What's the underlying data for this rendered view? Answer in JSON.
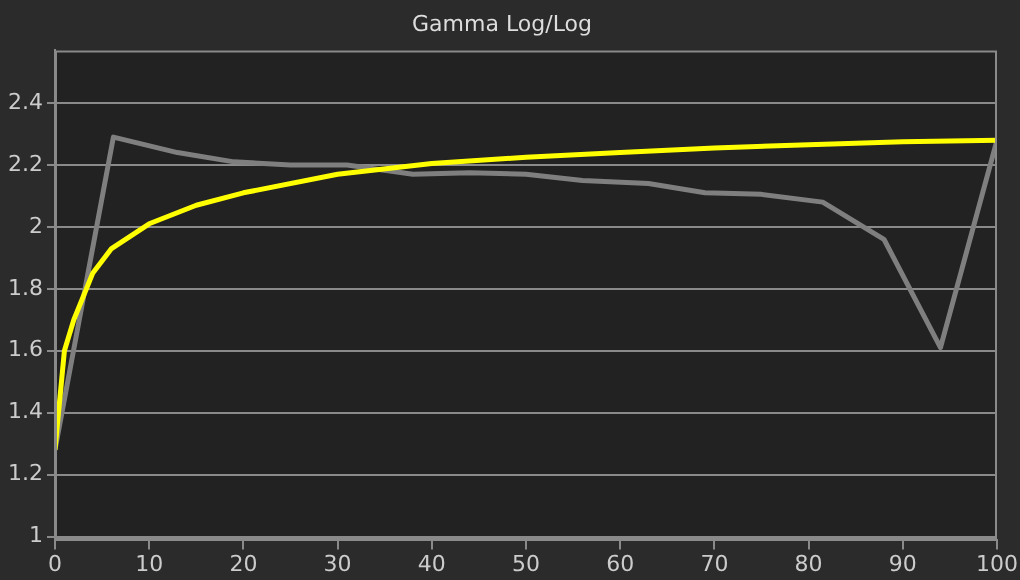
{
  "chart_data": {
    "type": "line",
    "title": "Gamma Log/Log",
    "xlim": [
      0,
      100
    ],
    "xticks": [
      0,
      10,
      20,
      30,
      40,
      50,
      60,
      70,
      80,
      90,
      100
    ],
    "ylim": [
      0.99,
      2.57
    ],
    "yticks": [
      1,
      1.2,
      1.4,
      1.6,
      1.8,
      2,
      2.2,
      2.4
    ],
    "grid": "y",
    "marker": "none",
    "legend": false,
    "series": [
      {
        "color": "#7f7f7f",
        "x": [
          0,
          6.2,
          13,
          19,
          25,
          31,
          38,
          44,
          50,
          56,
          63,
          69,
          75,
          81.5,
          88,
          94,
          100
        ],
        "values": [
          1.28,
          2.29,
          2.24,
          2.21,
          2.2,
          2.2,
          2.17,
          2.175,
          2.17,
          2.15,
          2.14,
          2.11,
          2.105,
          2.08,
          1.96,
          1.61,
          2.28
        ]
      },
      {
        "color": "#ffff00",
        "x": [
          0,
          1,
          2,
          4,
          6,
          10,
          15,
          20,
          30,
          40,
          50,
          60,
          70,
          80,
          90,
          100
        ],
        "values": [
          1.28,
          1.6,
          1.7,
          1.85,
          1.93,
          2.01,
          2.07,
          2.11,
          2.17,
          2.205,
          2.225,
          2.24,
          2.255,
          2.265,
          2.275,
          2.28
        ]
      }
    ]
  }
}
